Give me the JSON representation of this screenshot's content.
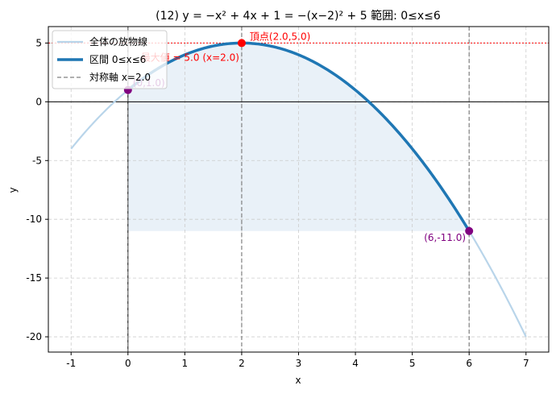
{
  "chart_data": {
    "type": "line",
    "title": "(12) y = −x² + 4x + 1 = −(x−2)² + 5   範囲: 0≤x≤6",
    "xlabel": "x",
    "ylabel": "y",
    "xlim": [
      -1.4,
      7.4
    ],
    "ylim": [
      -21.3,
      6.4
    ],
    "xticks": [
      -1,
      0,
      1,
      2,
      3,
      4,
      5,
      6,
      7
    ],
    "xtick_labels": [
      "-1",
      "0",
      "1",
      "2",
      "3",
      "4",
      "5",
      "6",
      "7"
    ],
    "yticks": [
      5,
      0,
      -5,
      -10,
      -15,
      -20
    ],
    "ytick_labels": [
      "5",
      "0",
      "-5",
      "-10",
      "-15",
      "-20"
    ],
    "grid": true,
    "function": {
      "a": -1,
      "b": 4,
      "c": 1
    },
    "series": [
      {
        "name": "全体の放物線",
        "x_range": [
          -1,
          7
        ],
        "color": "#b9d5ea"
      },
      {
        "name": "区間 0≤x≤6",
        "x_range": [
          0,
          6
        ],
        "color": "#1f77b4"
      },
      {
        "name": "対称軸 x=2.0",
        "x": 2,
        "color": "#808080"
      }
    ],
    "fill_between": {
      "x_range": [
        0,
        6
      ],
      "y_base": -11,
      "color": "#dbe8f4"
    },
    "vertical_lines": [
      0,
      2,
      6
    ],
    "max_line": {
      "y": 5,
      "color": "#ff0000"
    },
    "points": [
      {
        "x": 0,
        "y": 1,
        "color": "#800080",
        "label": "(0,1.0)"
      },
      {
        "x": 2,
        "y": 5,
        "color": "#ff0000",
        "label": "頂点(2.0,5.0)"
      },
      {
        "x": 6,
        "y": -11,
        "color": "#800080",
        "label": "(6,-11.0)"
      }
    ],
    "annotations": [
      {
        "text": "最大値 = 5.0  (x=2.0)",
        "color": "#ff0000"
      }
    ],
    "legend": {
      "placement": "top-left",
      "items": [
        "全体の放物線",
        "区間 0≤x≤6",
        "対称軸 x=2.0"
      ]
    }
  }
}
